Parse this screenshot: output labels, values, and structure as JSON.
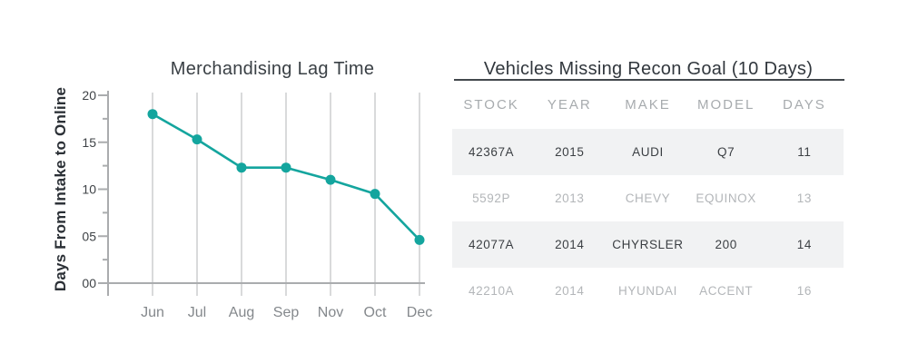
{
  "chart_data": [
    {
      "type": "line",
      "title": "Merchandising Lag Time",
      "ylabel": "Days From Intake to Online",
      "xlabel": "",
      "x": [
        "Jun",
        "Jul",
        "Aug",
        "Sep",
        "Nov",
        "Oct",
        "Dec"
      ],
      "values": [
        18,
        15.3,
        12.3,
        12.3,
        11,
        9.5,
        4.6
      ],
      "ylim": [
        0,
        20
      ],
      "ytick_values": [
        0,
        5,
        10,
        15,
        20
      ],
      "ytick_labels": [
        "00",
        "05",
        "10",
        "15",
        "20"
      ],
      "minor_tick_values": [
        2.5,
        7.5,
        12.5,
        17.5
      ],
      "grid": "vertical-only",
      "legend": "none",
      "line_color": "#14a59e",
      "marker_color": "#14a59e",
      "grid_color": "#d9dadb",
      "axis_color": "#aaacae",
      "ytick_label_color": "#3f4347",
      "xtick_label_color": "#84888c"
    },
    {
      "type": "table",
      "title": "Vehicles Missing Recon Goal (10 Days)",
      "columns": [
        "STOCK",
        "YEAR",
        "MAKE",
        "MODEL",
        "DAYS"
      ],
      "rows": [
        [
          "42367A",
          "2015",
          "AUDI",
          "Q7",
          "11"
        ],
        [
          "5592P",
          "2013",
          "CHEVY",
          "EQUINOX",
          "13"
        ],
        [
          "42077A",
          "2014",
          "CHYRSLER",
          "200",
          "14"
        ],
        [
          "42210A",
          "2014",
          "HYUNDAI",
          "ACCENT",
          "16"
        ]
      ],
      "row_emphasis": [
        "strong",
        "muted",
        "strong",
        "muted"
      ],
      "striped_rows": [
        0,
        2
      ],
      "stripe_color": "#f1f2f3"
    }
  ]
}
